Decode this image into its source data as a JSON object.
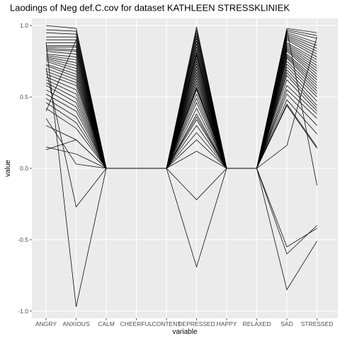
{
  "chart_data": {
    "type": "line",
    "title": "Laodings of Neg def.C.cov for dataset KATHLEEN STRESSKLINIEK",
    "xlabel": "variable",
    "ylabel": "value",
    "categories": [
      "ANGRY",
      "ANXIOUS",
      "CALM",
      "CHEERFUL",
      "CONTENT",
      "DEPRESSED",
      "HAPPY",
      "RELAXED",
      "SAD",
      "STRESSED"
    ],
    "ylim": [
      -1.05,
      1.05
    ],
    "yticks": [
      -1.0,
      -0.5,
      0.0,
      0.5,
      1.0
    ],
    "ytick_labels": [
      "-1.0",
      "-0.5",
      "0.0",
      "0.5",
      "1.0"
    ],
    "grid": true,
    "panel_background": "#ebebeb",
    "line_color": "#000000",
    "series": [
      {
        "values": [
          1.0,
          0.98,
          0,
          0,
          0,
          0.99,
          0,
          0,
          0.98,
          0.95
        ]
      },
      {
        "values": [
          0.97,
          0.96,
          0,
          0,
          0,
          0.97,
          0,
          0,
          0.97,
          0.93
        ]
      },
      {
        "values": [
          0.95,
          0.94,
          0,
          0,
          0,
          0.95,
          0,
          0,
          0.96,
          0.91
        ]
      },
      {
        "values": [
          0.92,
          0.92,
          0,
          0,
          0,
          0.93,
          0,
          0,
          0.95,
          0.88
        ]
      },
      {
        "values": [
          0.9,
          0.9,
          0,
          0,
          0,
          0.91,
          0,
          0,
          0.94,
          0.86
        ]
      },
      {
        "values": [
          0.88,
          0.88,
          0,
          0,
          0,
          0.89,
          0,
          0,
          0.93,
          0.84
        ]
      },
      {
        "values": [
          0.86,
          0.86,
          0,
          0,
          0,
          0.87,
          0,
          0,
          0.92,
          0.82
        ]
      },
      {
        "values": [
          0.85,
          0.85,
          0,
          0,
          0,
          0.85,
          0,
          0,
          0.91,
          0.8
        ]
      },
      {
        "values": [
          0.84,
          0.83,
          0,
          0,
          0,
          0.83,
          0,
          0,
          0.9,
          0.78
        ]
      },
      {
        "values": [
          0.83,
          0.82,
          0,
          0,
          0,
          0.81,
          0,
          0,
          0.88,
          0.76
        ]
      },
      {
        "values": [
          0.82,
          0.8,
          0,
          0,
          0,
          0.79,
          0,
          0,
          0.87,
          0.74
        ]
      },
      {
        "values": [
          0.8,
          0.78,
          0,
          0,
          0,
          0.77,
          0,
          0,
          0.86,
          0.72
        ]
      },
      {
        "values": [
          0.79,
          0.76,
          0,
          0,
          0,
          0.75,
          0,
          0,
          0.85,
          0.7
        ]
      },
      {
        "values": [
          0.78,
          0.74,
          0,
          0,
          0,
          0.73,
          0,
          0,
          0.84,
          0.68
        ]
      },
      {
        "values": [
          0.77,
          0.72,
          0,
          0,
          0,
          0.71,
          0,
          0,
          0.83,
          0.66
        ]
      },
      {
        "values": [
          0.76,
          0.7,
          0,
          0,
          0,
          0.69,
          0,
          0,
          0.82,
          0.64
        ]
      },
      {
        "values": [
          0.75,
          0.68,
          0,
          0,
          0,
          0.67,
          0,
          0,
          0.8,
          0.62
        ]
      },
      {
        "values": [
          0.73,
          0.66,
          0,
          0,
          0,
          0.65,
          0,
          0,
          0.79,
          0.6
        ]
      },
      {
        "values": [
          0.72,
          0.64,
          0,
          0,
          0,
          0.63,
          0,
          0,
          0.78,
          0.58
        ]
      },
      {
        "values": [
          0.7,
          0.62,
          0,
          0,
          0,
          0.61,
          0,
          0,
          0.77,
          0.56
        ]
      },
      {
        "values": [
          0.68,
          0.6,
          0,
          0,
          0,
          0.59,
          0,
          0,
          0.75,
          0.54
        ]
      },
      {
        "values": [
          0.66,
          0.58,
          0,
          0,
          0,
          0.57,
          0,
          0,
          0.73,
          0.52
        ]
      },
      {
        "values": [
          0.64,
          0.55,
          0,
          0,
          0,
          0.55,
          0,
          0,
          0.71,
          0.5
        ]
      },
      {
        "values": [
          0.62,
          0.52,
          0,
          0,
          0,
          0.52,
          0,
          0,
          0.69,
          0.47
        ]
      },
      {
        "values": [
          0.6,
          0.49,
          0,
          0,
          0,
          0.49,
          0,
          0,
          0.67,
          0.44
        ]
      },
      {
        "values": [
          0.58,
          0.46,
          0,
          0,
          0,
          0.46,
          0,
          0,
          0.65,
          0.42
        ]
      },
      {
        "values": [
          0.55,
          0.43,
          0,
          0,
          0,
          0.42,
          0,
          0,
          0.62,
          0.4
        ]
      },
      {
        "values": [
          0.52,
          0.4,
          0,
          0,
          0,
          0.38,
          0,
          0,
          0.58,
          0.38
        ]
      },
      {
        "values": [
          0.49,
          0.36,
          0,
          0,
          0,
          0.34,
          0,
          0,
          0.55,
          0.35
        ]
      },
      {
        "values": [
          0.46,
          0.32,
          0,
          0,
          0,
          0.3,
          0,
          0,
          0.52,
          0.3
        ]
      },
      {
        "values": [
          0.42,
          0.28,
          0,
          0,
          0,
          0.25,
          0,
          0,
          0.48,
          0.24
        ]
      },
      {
        "values": [
          0.3,
          0.2,
          0,
          0,
          0,
          0.2,
          0,
          0,
          0.45,
          0.15
        ]
      },
      {
        "values": [
          0.15,
          0.1,
          0,
          0,
          0,
          0.12,
          0,
          0,
          0.44,
          0.14
        ]
      },
      {
        "values": [
          0.13,
          0.2,
          0,
          0,
          0,
          0.36,
          0,
          0,
          0.16,
          0.92
        ]
      },
      {
        "values": [
          0.35,
          0.03,
          0,
          0,
          0,
          0.56,
          0,
          0,
          0.97,
          -0.12
        ]
      },
      {
        "values": [
          0.7,
          -0.27,
          0,
          0,
          0,
          -0.22,
          0,
          0,
          -0.55,
          -0.42
        ]
      },
      {
        "values": [
          0.88,
          -0.97,
          0,
          0,
          0,
          -0.69,
          0,
          0,
          -0.85,
          -0.51
        ]
      },
      {
        "values": [
          0.4,
          0.9,
          0,
          0,
          0,
          0.8,
          0,
          0,
          -0.6,
          -0.4
        ]
      }
    ]
  }
}
